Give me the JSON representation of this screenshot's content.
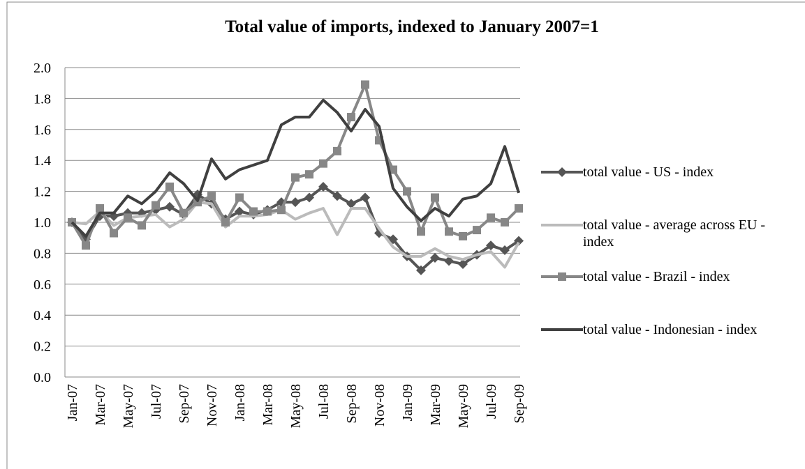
{
  "chart_data": {
    "type": "line",
    "title": "Total value of imports, indexed to January 2007=1",
    "categories": [
      "Jan-07",
      null,
      "Mar-07",
      null,
      "May-07",
      null,
      "Jul-07",
      null,
      "Sep-07",
      null,
      "Nov-07",
      null,
      "Jan-08",
      null,
      "Mar-08",
      null,
      "May-08",
      null,
      "Jul-08",
      null,
      "Sep-08",
      null,
      "Nov-08",
      null,
      "Jan-09",
      null,
      "Mar-09",
      null,
      "May-09",
      null,
      "Jul-09",
      null,
      "Sep-09"
    ],
    "series": [
      {
        "name": "total value - US - index",
        "color": "#555555",
        "marker": "diamond",
        "values": [
          1.0,
          0.89,
          1.04,
          1.04,
          1.06,
          1.06,
          1.08,
          1.1,
          1.05,
          1.18,
          1.12,
          1.02,
          1.07,
          1.05,
          1.08,
          1.13,
          1.13,
          1.16,
          1.23,
          1.17,
          1.12,
          1.16,
          0.93,
          0.89,
          0.78,
          0.69,
          0.77,
          0.75,
          0.73,
          0.79,
          0.85,
          0.82,
          0.88
        ]
      },
      {
        "name": "total value - average across EU - index",
        "color": "#bbbbbb",
        "marker": "none",
        "values": [
          1.0,
          0.99,
          1.07,
          0.98,
          1.03,
          1.04,
          1.05,
          0.97,
          1.02,
          1.13,
          1.12,
          0.97,
          1.04,
          1.04,
          1.05,
          1.08,
          1.02,
          1.06,
          1.09,
          0.92,
          1.09,
          1.09,
          0.96,
          0.84,
          0.78,
          0.78,
          0.83,
          0.78,
          0.76,
          0.79,
          0.81,
          0.71,
          0.87
        ]
      },
      {
        "name": "total value - Brazil - index",
        "color": "#878787",
        "marker": "square",
        "values": [
          1.0,
          0.85,
          1.09,
          0.93,
          1.03,
          0.98,
          1.11,
          1.23,
          1.06,
          1.13,
          1.17,
          1.0,
          1.16,
          1.07,
          1.07,
          1.08,
          1.29,
          1.31,
          1.38,
          1.46,
          1.68,
          1.89,
          1.53,
          1.34,
          1.2,
          0.94,
          1.16,
          0.94,
          0.91,
          0.95,
          1.03,
          1.0,
          1.09
        ]
      },
      {
        "name": "total value - Indonesian - index",
        "color": "#404040",
        "marker": "none",
        "values": [
          1.0,
          0.91,
          1.06,
          1.06,
          1.17,
          1.12,
          1.2,
          1.32,
          1.25,
          1.14,
          1.41,
          1.28,
          1.34,
          1.37,
          1.4,
          1.63,
          1.68,
          1.68,
          1.79,
          1.71,
          1.59,
          1.73,
          1.62,
          1.22,
          1.1,
          1.01,
          1.09,
          1.04,
          1.15,
          1.17,
          1.25,
          1.49,
          1.19
        ]
      }
    ],
    "ylim": [
      0,
      2
    ],
    "yticks": [
      {
        "value": 0,
        "label": "0.0"
      },
      0.2,
      0.4,
      0.6,
      0.8,
      {
        "value": 1,
        "label": "1.0"
      },
      1.2,
      1.4,
      1.6,
      1.8,
      {
        "value": 2,
        "label": "2.0"
      }
    ],
    "grid": true,
    "legend": "right"
  }
}
